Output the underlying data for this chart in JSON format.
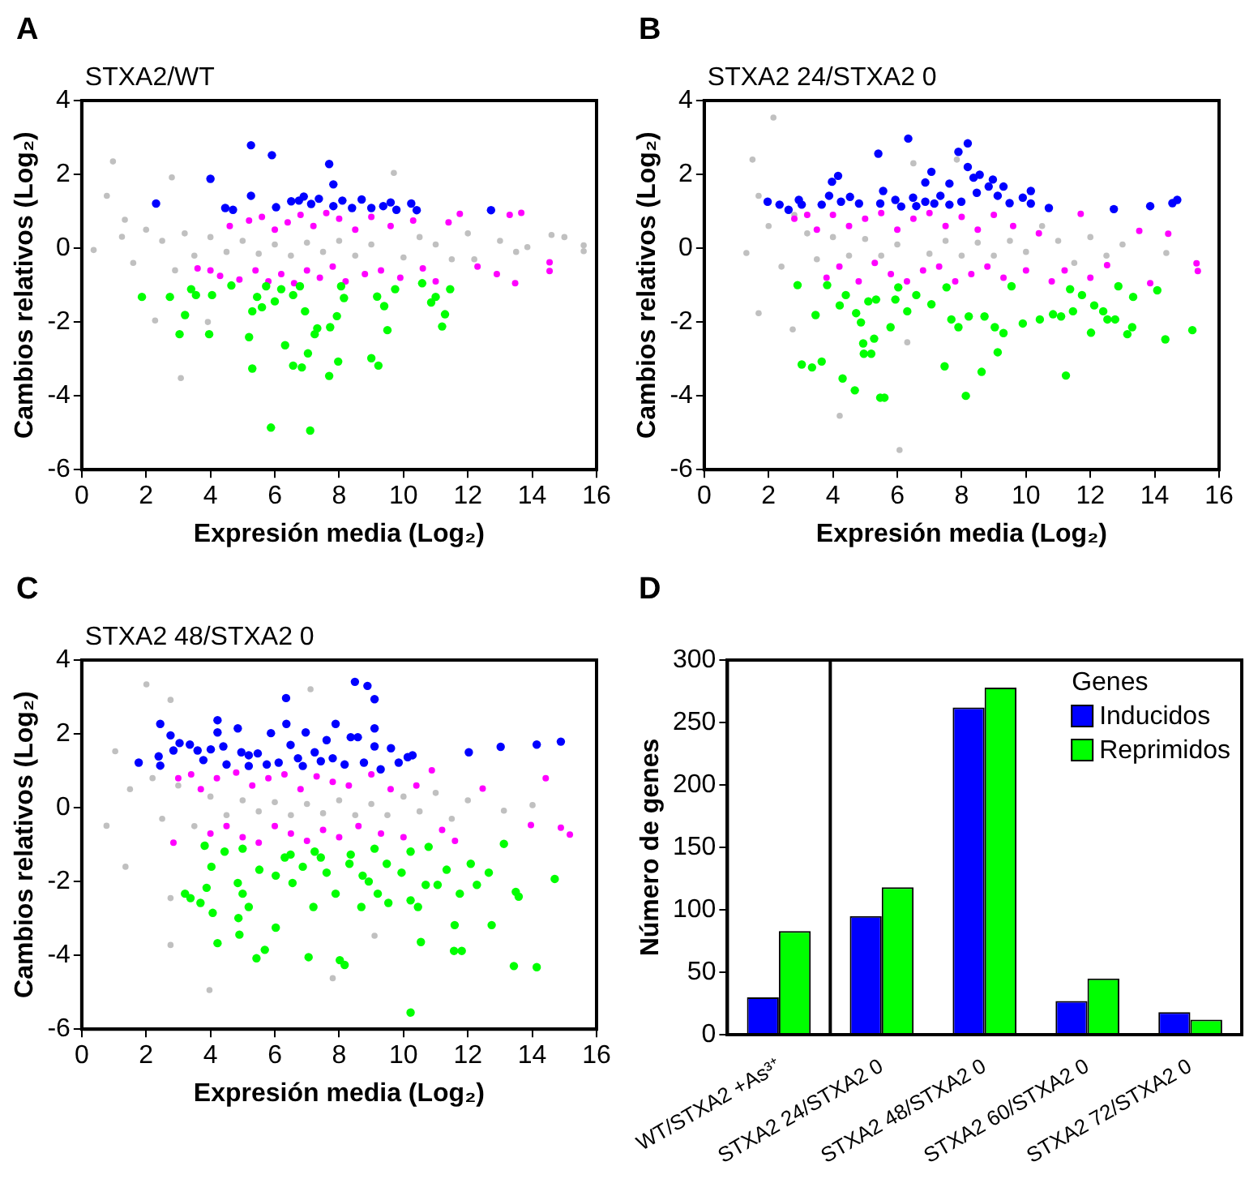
{
  "chart_data": [
    {
      "type": "scatter",
      "title": "STXA2/WT",
      "annotations": [
        "A"
      ],
      "xlabel": "Expresión media (Log₂)",
      "ylabel": "Cambios relativos (Log₂)",
      "xlim": [
        0,
        16
      ],
      "xticks": [
        0,
        2,
        4,
        6,
        8,
        10,
        12,
        14,
        16
      ],
      "ylim": [
        -6,
        4
      ],
      "yticks": [
        -6,
        -4,
        -2,
        0,
        2,
        4
      ],
      "grid": false,
      "legend": false,
      "marker": "circle",
      "series": [
        {
          "color": "#0000ff",
          "x": [
            2.31,
            4.0,
            4.46,
            4.7,
            5.26,
            5.26,
            5.91,
            6.04,
            6.51,
            6.75,
            6.9,
            7.13,
            7.37,
            7.69,
            7.82,
            7.82,
            8.1,
            8.4,
            8.7,
            9.0,
            9.37,
            9.6,
            9.78,
            10.24,
            10.41,
            12.72
          ],
          "values": [
            1.21,
            1.88,
            1.09,
            1.04,
            2.79,
            1.42,
            2.52,
            1.11,
            1.27,
            1.29,
            1.4,
            1.2,
            1.34,
            2.28,
            1.73,
            1.14,
            1.29,
            1.09,
            1.32,
            1.09,
            1.14,
            1.24,
            1.04,
            1.21,
            1.03,
            1.03
          ]
        },
        {
          "color": "#00ff00",
          "x": [
            1.87,
            2.74,
            3.04,
            3.21,
            3.4,
            3.55,
            3.96,
            4.05,
            4.65,
            5.2,
            5.3,
            5.3,
            5.45,
            5.6,
            5.73,
            5.88,
            6.0,
            6.2,
            6.32,
            6.57,
            6.57,
            6.78,
            6.84,
            6.94,
            7.03,
            7.1,
            7.24,
            7.32,
            7.69,
            7.72,
            7.93,
            7.97,
            8.06,
            8.15,
            9.0,
            9.18,
            9.22,
            9.4,
            9.5,
            9.74,
            10.58,
            10.86,
            11.0,
            11.2,
            11.29,
            11.45
          ],
          "values": [
            -1.32,
            -1.32,
            -2.33,
            -1.81,
            -1.11,
            -1.27,
            -2.33,
            -1.27,
            -1.01,
            -2.41,
            -3.26,
            -1.71,
            -1.32,
            -1.6,
            -1.03,
            -4.86,
            -1.44,
            -1.11,
            -2.63,
            -3.18,
            -1.27,
            -1.03,
            -3.23,
            -1.71,
            -2.85,
            -4.94,
            -2.33,
            -2.17,
            -3.46,
            -2.14,
            -1.84,
            -3.07,
            -1.03,
            -1.35,
            -2.98,
            -1.31,
            -3.18,
            -1.57,
            -2.22,
            -1.11,
            -0.95,
            -1.47,
            -1.32,
            -2.12,
            -1.79,
            -1.11
          ]
        },
        {
          "color": "#ff00ff",
          "x": [
            3.6,
            4.0,
            4.3,
            4.6,
            4.9,
            5.2,
            5.4,
            5.6,
            5.8,
            6.0,
            6.2,
            6.4,
            6.6,
            6.8,
            7.0,
            7.2,
            7.4,
            7.6,
            7.8,
            8.0,
            8.2,
            8.5,
            8.8,
            9.0,
            9.3,
            9.6,
            9.9,
            10.3,
            10.6,
            11.0,
            11.4,
            11.75,
            12.3,
            12.9,
            13.3,
            13.47,
            13.66,
            14.54,
            14.54
          ],
          "values": [
            -0.55,
            -0.6,
            -0.75,
            0.6,
            -0.85,
            0.75,
            -0.6,
            0.85,
            -0.9,
            0.5,
            -0.7,
            0.7,
            -0.95,
            0.9,
            -0.6,
            0.6,
            -0.8,
            0.95,
            -0.5,
            0.8,
            -0.9,
            0.5,
            -0.7,
            0.85,
            -0.6,
            0.6,
            -0.8,
            0.75,
            -0.55,
            -0.9,
            0.7,
            0.93,
            -0.5,
            -0.7,
            0.9,
            -0.95,
            0.96,
            -0.38,
            -0.62
          ]
        },
        {
          "color": "#c0c0c0",
          "x": [
            0.37,
            0.78,
            0.97,
            1.25,
            1.34,
            1.6,
            2.0,
            2.28,
            2.5,
            2.8,
            2.9,
            3.08,
            3.2,
            3.5,
            3.92,
            4.0,
            4.5,
            5.0,
            5.5,
            6.0,
            6.5,
            7.0,
            7.5,
            8.0,
            8.5,
            9.0,
            9.7,
            10.0,
            10.5,
            11.0,
            11.5,
            12.0,
            12.2,
            13.0,
            13.5,
            13.85,
            14.6,
            15.0,
            15.6,
            15.6
          ],
          "values": [
            -0.05,
            1.42,
            2.35,
            0.31,
            0.77,
            -0.4,
            0.5,
            -1.96,
            0.2,
            1.92,
            -0.6,
            -3.52,
            0.4,
            -0.2,
            -2.0,
            0.3,
            -0.1,
            0.2,
            -0.15,
            0.1,
            -0.2,
            0.15,
            -0.1,
            0.2,
            -0.2,
            0.1,
            2.04,
            -0.25,
            0.3,
            0.1,
            -0.3,
            0.4,
            -0.3,
            0.2,
            -0.1,
            0.03,
            0.36,
            0.3,
            -0.08,
            0.08
          ]
        }
      ]
    },
    {
      "type": "scatter",
      "title": "STXA2 24/STXA2 0",
      "annotations": [
        "B"
      ],
      "xlabel": "Expresión media (Log₂)",
      "ylabel": "Cambios relativos (Log₂)",
      "xlim": [
        0,
        16
      ],
      "xticks": [
        0,
        2,
        4,
        6,
        8,
        10,
        12,
        14,
        16
      ],
      "ylim": [
        -6,
        4
      ],
      "yticks": [
        -6,
        -4,
        -2,
        0,
        2,
        4
      ],
      "grid": false,
      "legend": false,
      "marker": "circle",
      "series": [
        {
          "color": "#0000ff",
          "x": [
            1.97,
            2.34,
            2.62,
            2.94,
            3.03,
            3.65,
            3.88,
            3.97,
            4.16,
            4.25,
            4.53,
            4.81,
            5.41,
            5.56,
            5.47,
            5.94,
            6.12,
            6.34,
            6.49,
            6.59,
            6.87,
            7.06,
            6.87,
            7.15,
            7.34,
            7.62,
            7.62,
            7.9,
            7.99,
            8.19,
            8.19,
            8.37,
            8.56,
            8.47,
            8.84,
            8.97,
            9.12,
            9.3,
            9.49,
            9.9,
            10.15,
            10.15,
            10.71,
            12.73,
            13.86,
            14.55,
            14.7
          ],
          "values": [
            1.26,
            1.18,
            1.04,
            1.31,
            1.18,
            1.18,
            1.42,
            1.8,
            1.96,
            1.26,
            1.39,
            1.21,
            2.56,
            1.55,
            1.21,
            1.31,
            1.13,
            2.97,
            1.37,
            1.14,
            1.78,
            2.07,
            1.26,
            1.21,
            1.42,
            1.75,
            1.18,
            2.61,
            1.26,
            2.84,
            2.2,
            1.91,
            1.99,
            1.5,
            1.67,
            1.86,
            1.42,
            1.67,
            1.22,
            1.37,
            1.55,
            1.21,
            1.09,
            1.06,
            1.14,
            1.22,
            1.31
          ]
        },
        {
          "color": "#00ff00",
          "x": [
            2.9,
            3.03,
            3.35,
            3.46,
            3.65,
            3.82,
            4.21,
            4.3,
            4.4,
            4.68,
            4.72,
            4.87,
            4.94,
            4.96,
            5.19,
            5.1,
            5.28,
            5.34,
            5.47,
            5.6,
            5.79,
            5.94,
            6.03,
            6.31,
            6.59,
            7.06,
            7.47,
            7.53,
            7.68,
            7.9,
            8.13,
            8.22,
            8.62,
            8.71,
            9.03,
            9.12,
            9.3,
            9.55,
            9.9,
            10.43,
            10.84,
            11.09,
            11.24,
            11.37,
            11.46,
            11.74,
            12.02,
            12.12,
            12.4,
            12.53,
            12.77,
            12.87,
            13.15,
            13.3,
            13.33,
            14.08,
            14.33,
            15.17
          ],
          "values": [
            -1.0,
            -3.15,
            -3.23,
            -1.81,
            -3.07,
            -1.0,
            -1.55,
            -3.53,
            -1.27,
            -3.85,
            -1.76,
            -2.01,
            -2.58,
            -2.86,
            -2.86,
            -1.44,
            -2.45,
            -1.39,
            -4.05,
            -4.05,
            -2.14,
            -1.39,
            -1.06,
            -1.71,
            -1.27,
            -1.52,
            -3.2,
            -1.06,
            -1.93,
            -2.14,
            -4.0,
            -1.85,
            -3.35,
            -1.85,
            -2.14,
            -2.82,
            -2.3,
            -1.03,
            -2.04,
            -1.93,
            -1.79,
            -1.85,
            -3.45,
            -1.11,
            -1.71,
            -1.27,
            -2.29,
            -1.55,
            -1.71,
            -1.93,
            -1.93,
            -1.03,
            -2.33,
            -2.14,
            -1.32,
            -1.14,
            -2.47,
            -2.22
          ]
        },
        {
          "color": "#ff00ff",
          "x": [
            2.8,
            3.2,
            3.5,
            3.8,
            4.0,
            4.2,
            4.5,
            4.8,
            5.0,
            5.3,
            5.5,
            5.8,
            6.0,
            6.3,
            6.5,
            6.8,
            7.0,
            7.3,
            7.5,
            7.8,
            8.0,
            8.3,
            8.5,
            8.8,
            9.0,
            9.3,
            9.6,
            10.0,
            10.4,
            10.8,
            11.2,
            11.7,
            12.0,
            12.52,
            13.52,
            13.86,
            14.42,
            15.3,
            15.34
          ],
          "values": [
            0.8,
            0.9,
            0.5,
            -0.8,
            0.9,
            -0.5,
            0.6,
            -0.9,
            0.8,
            -0.4,
            0.95,
            -0.7,
            0.5,
            -0.9,
            0.8,
            -0.6,
            0.95,
            -0.5,
            0.6,
            -0.9,
            0.85,
            -0.7,
            0.5,
            -0.5,
            0.9,
            -0.8,
            0.6,
            -0.6,
            0.4,
            -0.9,
            -0.6,
            0.93,
            -0.8,
            -0.46,
            0.47,
            -0.95,
            0.39,
            -0.41,
            -0.62
          ]
        },
        {
          "color": "#c0c0c0",
          "x": [
            1.31,
            1.5,
            1.69,
            1.69,
            2.15,
            2.0,
            2.4,
            2.75,
            2.8,
            3.2,
            3.5,
            4.0,
            4.21,
            4.5,
            5.0,
            5.5,
            6.0,
            6.07,
            6.31,
            6.5,
            7.0,
            7.5,
            7.85,
            8.0,
            8.5,
            9.0,
            9.5,
            10.0,
            10.5,
            11.0,
            11.5,
            12.0,
            12.5,
            13.0,
            14.36
          ],
          "values": [
            -0.13,
            2.4,
            1.42,
            -1.76,
            3.54,
            0.6,
            -0.5,
            -2.2,
            0.9,
            0.4,
            -0.3,
            0.3,
            -4.54,
            -0.2,
            0.25,
            -0.2,
            0.1,
            -5.47,
            -2.55,
            2.3,
            -0.15,
            0.2,
            2.4,
            -0.2,
            0.15,
            -0.2,
            0.2,
            -0.1,
            0.6,
            0.2,
            -0.4,
            0.3,
            -0.2,
            0.1,
            -0.13
          ]
        }
      ]
    },
    {
      "type": "scatter",
      "title": "STXA2 48/STXA2 0",
      "annotations": [
        "C"
      ],
      "xlabel": "Expresión media (Log₂)",
      "ylabel": "Cambios relativos (Log₂)",
      "xlim": [
        0,
        16
      ],
      "xticks": [
        0,
        2,
        4,
        6,
        8,
        10,
        12,
        14,
        16
      ],
      "ylim": [
        -6,
        4
      ],
      "yticks": [
        -6,
        -4,
        -2,
        0,
        2,
        4
      ],
      "grid": false,
      "legend": false,
      "marker": "circle",
      "series": [
        {
          "color": "#0000ff",
          "x": [
            1.77,
            2.44,
            2.39,
            2.44,
            2.76,
            2.85,
            3.04,
            3.36,
            3.6,
            3.78,
            4.01,
            4.22,
            4.22,
            4.4,
            4.5,
            4.85,
            4.96,
            5.19,
            5.19,
            5.47,
            5.75,
            5.88,
            6.12,
            6.35,
            6.36,
            6.49,
            6.72,
            6.87,
            6.96,
            7.24,
            7.43,
            7.61,
            7.8,
            7.89,
            8.17,
            8.36,
            8.49,
            8.58,
            8.77,
            8.88,
            9.1,
            9.1,
            9.1,
            9.29,
            9.61,
            9.85,
            10.13,
            10.28,
            12.03,
            13.02,
            14.14,
            14.89
          ],
          "values": [
            1.22,
            2.27,
            1.39,
            1.14,
            1.96,
            1.55,
            1.75,
            1.71,
            1.55,
            1.29,
            1.58,
            2.37,
            2.04,
            1.66,
            1.17,
            2.15,
            1.5,
            1.42,
            1.13,
            1.47,
            1.17,
            2.02,
            1.22,
            2.97,
            2.27,
            1.7,
            1.34,
            1.13,
            2.04,
            1.5,
            1.26,
            1.83,
            1.34,
            2.27,
            1.17,
            1.91,
            3.41,
            1.91,
            1.22,
            3.3,
            2.94,
            2.15,
            1.66,
            1.04,
            1.61,
            1.22,
            1.37,
            1.42,
            1.5,
            1.65,
            1.71,
            1.79
          ]
        },
        {
          "color": "#00ff00",
          "x": [
            3.21,
            3.38,
            3.69,
            3.82,
            3.88,
            4.03,
            4.07,
            4.22,
            4.44,
            4.85,
            4.87,
            4.9,
            5.0,
            5.0,
            5.19,
            5.43,
            5.52,
            5.69,
            6.03,
            6.03,
            6.31,
            6.49,
            6.55,
            6.87,
            7.05,
            7.2,
            7.24,
            7.43,
            7.61,
            7.89,
            8.02,
            8.17,
            8.32,
            8.36,
            8.69,
            8.73,
            8.92,
            9.1,
            9.2,
            9.48,
            9.53,
            9.94,
            10.22,
            10.22,
            10.22,
            10.45,
            10.54,
            10.69,
            10.78,
            11.06,
            11.34,
            11.57,
            11.59,
            11.75,
            11.81,
            12.09,
            12.28,
            12.65,
            12.74,
            13.12,
            13.43,
            13.49,
            13.58,
            14.14,
            14.7
          ],
          "values": [
            -2.33,
            -2.45,
            -2.58,
            -1.03,
            -2.17,
            -1.6,
            -2.85,
            -3.67,
            -1.19,
            -2.04,
            -2.99,
            -3.44,
            -2.33,
            -1.11,
            -2.69,
            -4.08,
            -1.68,
            -3.85,
            -3.25,
            -1.84,
            -1.35,
            -1.27,
            -2.04,
            -1.6,
            -4.05,
            -2.69,
            -1.19,
            -1.35,
            -1.76,
            -2.33,
            -4.13,
            -4.26,
            -1.52,
            -1.27,
            -2.69,
            -1.84,
            -2.0,
            -1.11,
            -2.33,
            -1.52,
            -2.58,
            -1.76,
            -2.51,
            -1.19,
            -5.55,
            -2.69,
            -3.64,
            -2.09,
            -1.06,
            -2.09,
            -1.68,
            -3.88,
            -3.18,
            -2.33,
            -3.88,
            -1.52,
            -2.09,
            -1.76,
            -3.18,
            -0.98,
            -4.29,
            -2.28,
            -2.41,
            -4.32,
            -1.93
          ]
        },
        {
          "color": "#ff00ff",
          "x": [
            2.85,
            3.0,
            3.4,
            3.7,
            4.0,
            4.2,
            4.5,
            4.8,
            5.0,
            5.3,
            5.5,
            5.8,
            6.0,
            6.3,
            6.5,
            6.8,
            7.0,
            7.3,
            7.5,
            7.8,
            8.0,
            8.3,
            8.6,
            9.0,
            9.3,
            9.6,
            10.0,
            10.4,
            10.88,
            11.2,
            11.6,
            12.46,
            13.96,
            14.42,
            14.89,
            15.17
          ],
          "values": [
            -0.95,
            0.8,
            0.9,
            0.5,
            -0.7,
            0.8,
            -0.5,
            0.95,
            -0.8,
            0.6,
            -0.95,
            0.8,
            -0.5,
            0.9,
            -0.7,
            0.5,
            -0.9,
            0.85,
            -0.6,
            0.7,
            -0.8,
            0.6,
            -0.5,
            0.9,
            -0.7,
            0.5,
            -0.8,
            0.6,
            1.01,
            -0.6,
            -0.9,
            0.52,
            -0.47,
            0.8,
            -0.54,
            -0.73
          ]
        },
        {
          "color": "#c0c0c0",
          "x": [
            0.77,
            1.04,
            1.36,
            1.5,
            2.01,
            2.2,
            2.5,
            2.76,
            2.76,
            2.76,
            3.0,
            3.5,
            3.97,
            4.0,
            4.5,
            5.0,
            5.5,
            6.0,
            6.5,
            7.0,
            7.11,
            7.5,
            7.8,
            8.0,
            8.5,
            9.0,
            9.1,
            9.5,
            10.0,
            10.5,
            11.0,
            11.5,
            12.0,
            13.12,
            14.01
          ],
          "values": [
            -0.49,
            1.53,
            -1.6,
            0.5,
            3.34,
            0.8,
            -0.3,
            2.92,
            -2.45,
            -3.72,
            0.6,
            -0.5,
            -4.94,
            0.3,
            -0.2,
            0.2,
            -0.1,
            0.15,
            -0.2,
            0.1,
            3.21,
            -0.15,
            -4.62,
            0.2,
            -0.2,
            0.1,
            -3.47,
            -0.2,
            0.3,
            -0.1,
            0.4,
            -0.3,
            0.2,
            -0.08,
            0.07
          ]
        }
      ]
    },
    {
      "type": "bar",
      "annotations": [
        "D"
      ],
      "ylabel": "Número de genes",
      "legend_title": "Genes",
      "legend": "top right",
      "grid": false,
      "categories": [
        "WT/STXA2 +As³⁺",
        "STXA2 24/STXA2 0",
        "STXA2 48/STXA2 0",
        "STXA2 60/STXA2 0",
        "STXA2 72/STXA2 0"
      ],
      "ylim": [
        0,
        300
      ],
      "yticks": [
        0,
        50,
        100,
        150,
        200,
        250,
        300
      ],
      "series": [
        {
          "name": "Inducidos",
          "color": "#0000ff",
          "values": [
            30,
            95,
            262,
            27,
            18
          ]
        },
        {
          "name": "Reprimidos",
          "color": "#00ff00",
          "values": [
            83,
            118,
            278,
            45,
            12
          ]
        }
      ]
    }
  ]
}
